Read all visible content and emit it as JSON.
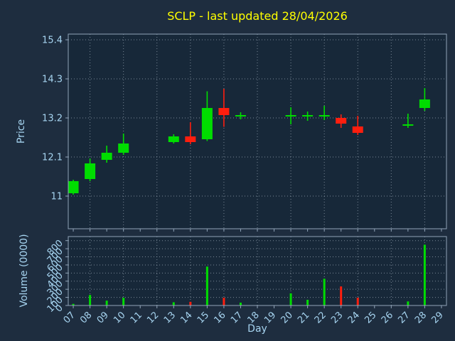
{
  "chart_data": {
    "type": "candlestick",
    "title": "SCLP - last updated 28/04/2026",
    "xlabel": "Day",
    "price_ylabel": "Price",
    "volume_ylabel": "Volume (0000)",
    "x_ticks": [
      "07",
      "08",
      "09",
      "10",
      "11",
      "12",
      "13",
      "14",
      "15",
      "16",
      "17",
      "18",
      "19",
      "20",
      "21",
      "22",
      "23",
      "24",
      "25",
      "26",
      "27",
      "28",
      "29"
    ],
    "price_ticks": [
      "11",
      "12.1",
      "13.2",
      "14.3",
      "15.4"
    ],
    "volume_ticks": [
      "0",
      "100",
      "200",
      "300",
      "400",
      "500",
      "600",
      "700",
      "800"
    ],
    "xlim": [
      6.7,
      29.3
    ],
    "price_ylim": [
      10.08,
      15.56
    ],
    "volume_ylim": [
      0,
      850
    ],
    "grid": "dotted vertical lines on even days, dotted horizontal lines at every tick",
    "legend": "none",
    "candles": [
      {
        "day": "07",
        "open": 11.08,
        "close": 11.42,
        "high": 11.46,
        "low": 11.04
      },
      {
        "day": "08",
        "open": 11.48,
        "close": 11.92,
        "high": 12.06,
        "low": 11.42
      },
      {
        "day": "09",
        "open": 12.02,
        "close": 12.22,
        "high": 12.42,
        "low": 11.94
      },
      {
        "day": "10",
        "open": 12.22,
        "close": 12.48,
        "high": 12.76,
        "low": 12.16
      },
      {
        "day": "13",
        "open": 12.52,
        "close": 12.68,
        "high": 12.74,
        "low": 12.48
      },
      {
        "day": "14",
        "open": 12.68,
        "close": 12.52,
        "high": 13.08,
        "low": 12.46
      },
      {
        "day": "15",
        "open": 12.6,
        "close": 13.48,
        "high": 13.95,
        "low": 12.55
      },
      {
        "day": "16",
        "open": 13.48,
        "close": 13.28,
        "high": 14.02,
        "low": 12.95
      },
      {
        "day": "17",
        "open": 13.24,
        "close": 13.28,
        "high": 13.36,
        "low": 13.16
      },
      {
        "day": "20",
        "open": 13.24,
        "close": 13.28,
        "high": 13.5,
        "low": 13.02
      },
      {
        "day": "21",
        "open": 13.24,
        "close": 13.28,
        "high": 13.38,
        "low": 13.12
      },
      {
        "day": "22",
        "open": 13.24,
        "close": 13.28,
        "high": 13.54,
        "low": 13.14
      },
      {
        "day": "23",
        "open": 13.2,
        "close": 13.04,
        "high": 13.3,
        "low": 12.92
      },
      {
        "day": "24",
        "open": 12.96,
        "close": 12.78,
        "high": 13.26,
        "low": 12.72
      },
      {
        "day": "27",
        "open": 12.98,
        "close": 13.02,
        "high": 13.32,
        "low": 12.92
      },
      {
        "day": "28",
        "open": 13.48,
        "close": 13.72,
        "high": 14.04,
        "low": 13.4
      }
    ],
    "volumes": [
      {
        "day": "07",
        "value": 20,
        "dir": "up"
      },
      {
        "day": "08",
        "value": 130,
        "dir": "up"
      },
      {
        "day": "09",
        "value": 60,
        "dir": "up"
      },
      {
        "day": "10",
        "value": 95,
        "dir": "up"
      },
      {
        "day": "13",
        "value": 40,
        "dir": "up"
      },
      {
        "day": "14",
        "value": 45,
        "dir": "down"
      },
      {
        "day": "15",
        "value": 480,
        "dir": "up"
      },
      {
        "day": "16",
        "value": 95,
        "dir": "down"
      },
      {
        "day": "17",
        "value": 35,
        "dir": "up"
      },
      {
        "day": "20",
        "value": 150,
        "dir": "up"
      },
      {
        "day": "21",
        "value": 70,
        "dir": "up"
      },
      {
        "day": "22",
        "value": 330,
        "dir": "up"
      },
      {
        "day": "23",
        "value": 235,
        "dir": "down"
      },
      {
        "day": "24",
        "value": 95,
        "dir": "down"
      },
      {
        "day": "27",
        "value": 50,
        "dir": "up"
      },
      {
        "day": "28",
        "value": 750,
        "dir": "up"
      }
    ],
    "colors": {
      "up": "#00dd00",
      "down": "#ff1e0e",
      "figure_background": "#1e2d3f",
      "axes_background": "#172839",
      "grid": "#9aa8b5",
      "spine": "#90a4b8",
      "tick_label": "#a6d4f0",
      "title": "#ffff00"
    }
  }
}
